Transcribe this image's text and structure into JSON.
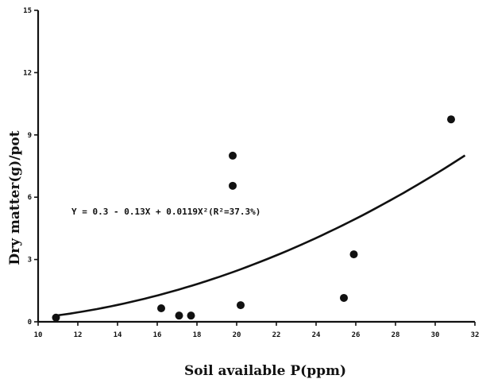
{
  "chart_data": {
    "type": "scatter",
    "title": "",
    "xlabel": "Soil available P(ppm)",
    "ylabel": "Dry matter(g)/pot",
    "xlim": [
      10,
      32
    ],
    "ylim": [
      0,
      15
    ],
    "x_ticks": [
      10,
      12,
      14,
      16,
      18,
      20,
      22,
      24,
      26,
      28,
      30,
      32
    ],
    "y_ticks": [
      0,
      3,
      6,
      9,
      12,
      15
    ],
    "grid": false,
    "legend": "none",
    "series": [
      {
        "points": [
          {
            "x": 10.9,
            "y": 0.2
          },
          {
            "x": 16.2,
            "y": 0.65
          },
          {
            "x": 17.1,
            "y": 0.3
          },
          {
            "x": 17.7,
            "y": 0.3
          },
          {
            "x": 19.8,
            "y": 8.0
          },
          {
            "x": 19.8,
            "y": 6.55
          },
          {
            "x": 20.2,
            "y": 0.8
          },
          {
            "x": 25.4,
            "y": 1.15
          },
          {
            "x": 25.9,
            "y": 3.25
          },
          {
            "x": 30.8,
            "y": 9.75
          }
        ]
      }
    ],
    "fit_curve": {
      "equation": "Y = 0.3 - 0.13X + 0.0119X²(R²=37.3%)",
      "intercept": 0.3,
      "linear": -0.13,
      "quadratic": 0.0119,
      "x_range": [
        10.9,
        31.5
      ]
    }
  }
}
